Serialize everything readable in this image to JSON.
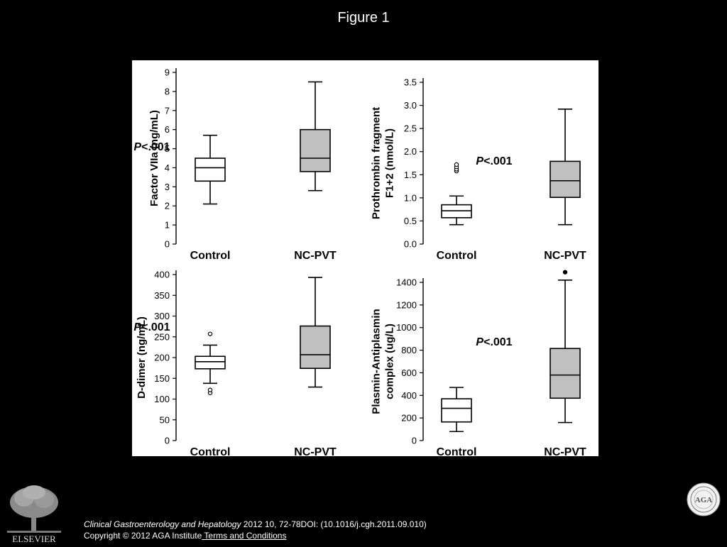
{
  "slide_title": "Figure 1",
  "citation": {
    "journal": "Clinical Gastroenterology and Hepatology",
    "details": " 2012 10, 72-78DOI: (10.1016/j.cgh.2011.09.010)"
  },
  "copyright": {
    "text": "Copyright © 2012 AGA Institute",
    "link_label": " Terms and Conditions"
  },
  "logos": {
    "publisher": "ELSEVIER",
    "seal_text": "AGA"
  },
  "colors": {
    "background": "#000000",
    "panel": "#ffffff",
    "ncpvt_box_fill": "#c0c0c0",
    "control_box_fill": "#ffffff"
  },
  "chart_data": [
    {
      "type": "box",
      "ylabel": [
        "Factor VIIa (ng/mL)"
      ],
      "categories": [
        "Control",
        "NC-PVT"
      ],
      "ylim": [
        0,
        9
      ],
      "yticks": [
        0,
        1,
        2,
        3,
        4,
        5,
        6,
        7,
        8,
        9
      ],
      "ytick_labels": [
        "0",
        "1",
        "2",
        "3",
        "4",
        "5",
        "6",
        "7",
        "8",
        "9"
      ],
      "annotation": {
        "italic": "P",
        "text": "<.001"
      },
      "boxes": [
        {
          "name": "Control",
          "min": 2.1,
          "q1": 3.3,
          "median": 4.0,
          "q3": 4.5,
          "max": 5.7,
          "outliers": [],
          "fill": "white"
        },
        {
          "name": "NC-PVT",
          "min": 2.8,
          "q1": 3.8,
          "median": 4.5,
          "q3": 6.0,
          "max": 8.5,
          "outliers": [],
          "fill": "gray"
        }
      ]
    },
    {
      "type": "box",
      "ylabel": [
        "Prothrombin fragment",
        "F1+2 (nmol/L)"
      ],
      "categories": [
        "Control",
        "NC-PVT"
      ],
      "ylim": [
        0,
        3.5
      ],
      "yticks": [
        0,
        0.5,
        1,
        1.5,
        2,
        2.5,
        3,
        3.5
      ],
      "ytick_labels": [
        "0.0",
        "0.5",
        "1.0",
        "1.5",
        "2.0",
        "2.5",
        "3.0",
        "3.5"
      ],
      "annotation": {
        "italic": "P",
        "text": "<.001"
      },
      "boxes": [
        {
          "name": "Control",
          "min": 0.42,
          "q1": 0.57,
          "median": 0.72,
          "q3": 0.85,
          "max": 1.04,
          "outliers": [
            1.58,
            1.62,
            1.67,
            1.72
          ],
          "fill": "white"
        },
        {
          "name": "NC-PVT",
          "min": 0.42,
          "q1": 1.01,
          "median": 1.37,
          "q3": 1.79,
          "max": 2.92,
          "outliers": [],
          "fill": "gray"
        }
      ]
    },
    {
      "type": "box",
      "ylabel": [
        "D-dimer (ng/mL)"
      ],
      "categories": [
        "Control",
        "NC-PVT"
      ],
      "ylim": [
        0,
        400
      ],
      "yticks": [
        0,
        50,
        100,
        150,
        200,
        250,
        300,
        350,
        400
      ],
      "ytick_labels": [
        "0",
        "50",
        "100",
        "150",
        "200",
        "250",
        "300",
        "350",
        "400"
      ],
      "annotation": {
        "italic": "P",
        "text": "<.001"
      },
      "boxes": [
        {
          "name": "Control",
          "min": 138,
          "q1": 173,
          "median": 190,
          "q3": 203,
          "max": 230,
          "outliers": [
            115,
            122,
            257
          ],
          "fill": "white"
        },
        {
          "name": "NC-PVT",
          "min": 129,
          "q1": 174,
          "median": 207,
          "q3": 276,
          "max": 393,
          "outliers": [],
          "fill": "gray"
        }
      ]
    },
    {
      "type": "box",
      "ylabel": [
        "Plasmin-Antiplasmin",
        "complex (ug/L)"
      ],
      "categories": [
        "Control",
        "NC-PVT"
      ],
      "ylim": [
        0,
        1400
      ],
      "yticks": [
        0,
        200,
        400,
        600,
        800,
        1000,
        1200,
        1400
      ],
      "ytick_labels": [
        "0",
        "200",
        "400",
        "600",
        "800",
        "1000",
        "1200",
        "1400"
      ],
      "annotation": {
        "italic": "P",
        "text": "<.001"
      },
      "boxes": [
        {
          "name": "Control",
          "min": 80,
          "q1": 165,
          "median": 285,
          "q3": 370,
          "max": 470,
          "outliers": [],
          "fill": "white"
        },
        {
          "name": "NC-PVT",
          "min": 160,
          "q1": 375,
          "median": 580,
          "q3": 815,
          "max": 1420,
          "outliers": [
            1490
          ],
          "fill": "gray"
        }
      ]
    }
  ]
}
